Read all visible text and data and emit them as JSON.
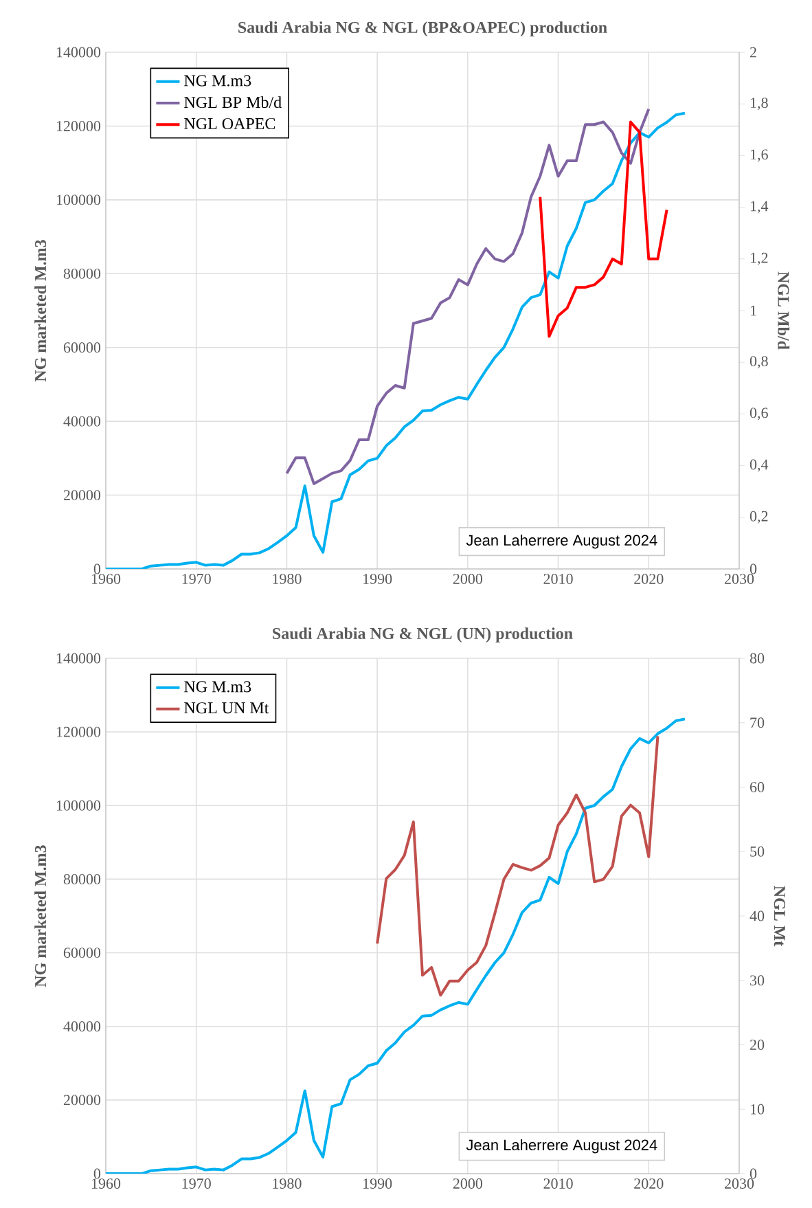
{
  "chart_data": [
    {
      "type": "line",
      "title": "Saudi Arabia NG & NGL (BP&OAPEC)  production",
      "ylabel": "NG marketed  M.m3",
      "y2label": "NGL Mb/d",
      "grid": true,
      "legend": "top left",
      "xlim": [
        1960,
        2030
      ],
      "xticks": [
        1960,
        1970,
        1980,
        1990,
        2000,
        2010,
        2020,
        2030
      ],
      "ylim": [
        0,
        140000
      ],
      "yticks": [
        0,
        20000,
        40000,
        60000,
        80000,
        100000,
        120000,
        140000
      ],
      "y2lim": [
        0,
        2
      ],
      "y2ticks": [
        0,
        {
          "value": 0.2,
          "label": "0,2"
        },
        {
          "value": 0.4,
          "label": "0,4"
        },
        {
          "value": 0.6,
          "label": "0,6"
        },
        {
          "value": 0.8,
          "label": "0,8"
        },
        1,
        {
          "value": 1.2,
          "label": "1,2"
        },
        {
          "value": 1.4,
          "label": "1,4"
        },
        {
          "value": 1.6,
          "label": "1,6"
        },
        {
          "value": 1.8,
          "label": "1,8"
        },
        2
      ],
      "annotations": [
        "Jean Laherrere August 2024"
      ],
      "series": [
        {
          "name": "NG M.m3",
          "color": "#00b0f0",
          "axis": "y",
          "x": [
            1960,
            1961,
            1962,
            1963,
            1964,
            1965,
            1966,
            1967,
            1968,
            1969,
            1970,
            1971,
            1972,
            1973,
            1974,
            1975,
            1976,
            1977,
            1978,
            1979,
            1980,
            1981,
            1982,
            1983,
            1984,
            1985,
            1986,
            1987,
            1988,
            1989,
            1990,
            1991,
            1992,
            1993,
            1994,
            1995,
            1996,
            1997,
            1998,
            1999,
            2000,
            2001,
            2002,
            2003,
            2004,
            2005,
            2006,
            2007,
            2008,
            2009,
            2010,
            2011,
            2012,
            2013,
            2014,
            2015,
            2016,
            2017,
            2018,
            2019,
            2020,
            2021,
            2022,
            2023,
            2024
          ],
          "values": [
            0,
            0,
            0,
            0,
            0,
            800,
            1000,
            1200,
            1200,
            1600,
            1800,
            1000,
            1200,
            1000,
            2300,
            4000,
            4000,
            4400,
            5500,
            7200,
            9000,
            11200,
            22500,
            9000,
            4500,
            18200,
            19000,
            25500,
            27000,
            29300,
            30000,
            33400,
            35500,
            38500,
            40300,
            42800,
            43000,
            44500,
            45600,
            46500,
            46000,
            50000,
            53800,
            57300,
            60000,
            65000,
            70900,
            73500,
            74300,
            80500,
            78800,
            87500,
            92300,
            99300,
            100000,
            102400,
            104400,
            110600,
            115400,
            118200,
            117000,
            119500,
            121000,
            123000,
            123500
          ]
        },
        {
          "name": "NGL BP Mb/d",
          "color": "#8064a2",
          "axis": "y2",
          "x": [
            1980,
            1981,
            1982,
            1983,
            1984,
            1985,
            1986,
            1987,
            1988,
            1989,
            1990,
            1991,
            1992,
            1993,
            1994,
            1995,
            1996,
            1997,
            1998,
            1999,
            2000,
            2001,
            2002,
            2003,
            2004,
            2005,
            2006,
            2007,
            2008,
            2009,
            2010,
            2011,
            2012,
            2013,
            2014,
            2015,
            2016,
            2017,
            2018,
            2019,
            2020
          ],
          "values": [
            0.37,
            0.43,
            0.43,
            0.33,
            0.35,
            0.37,
            0.38,
            0.42,
            0.5,
            0.5,
            0.63,
            0.68,
            0.71,
            0.7,
            0.95,
            0.96,
            0.97,
            1.03,
            1.05,
            1.12,
            1.1,
            1.18,
            1.24,
            1.2,
            1.19,
            1.22,
            1.3,
            1.44,
            1.52,
            1.64,
            1.52,
            1.58,
            1.58,
            1.72,
            1.72,
            1.73,
            1.69,
            1.61,
            1.57,
            1.69,
            1.78
          ]
        },
        {
          "name": "NGL OAPEC",
          "color": "#ff0000",
          "axis": "y2",
          "x": [
            2008,
            2009,
            2010,
            2011,
            2012,
            2013,
            2014,
            2015,
            2016,
            2017,
            2018,
            2019,
            2020,
            2021,
            2022
          ],
          "values": [
            1.44,
            0.9,
            0.98,
            1.01,
            1.09,
            1.09,
            1.1,
            1.13,
            1.2,
            1.18,
            1.73,
            1.69,
            1.2,
            1.2,
            1.39
          ]
        }
      ]
    },
    {
      "type": "line",
      "title": "Saudi Arabia NG & NGL (UN)  production",
      "ylabel": "NG marketed  M.m3",
      "y2label": "NGL Mt",
      "grid": true,
      "legend": "top left",
      "xlim": [
        1960,
        2030
      ],
      "xticks": [
        1960,
        1970,
        1980,
        1990,
        2000,
        2010,
        2020,
        2030
      ],
      "ylim": [
        0,
        140000
      ],
      "yticks": [
        0,
        20000,
        40000,
        60000,
        80000,
        100000,
        120000,
        140000
      ],
      "y2lim": [
        0,
        80
      ],
      "y2ticks": [
        0,
        10,
        20,
        30,
        40,
        50,
        60,
        70,
        80
      ],
      "annotations": [
        "Jean Laherrere August 2024"
      ],
      "series": [
        {
          "name": "NG M.m3",
          "color": "#00b0f0",
          "axis": "y",
          "x": [
            1960,
            1961,
            1962,
            1963,
            1964,
            1965,
            1966,
            1967,
            1968,
            1969,
            1970,
            1971,
            1972,
            1973,
            1974,
            1975,
            1976,
            1977,
            1978,
            1979,
            1980,
            1981,
            1982,
            1983,
            1984,
            1985,
            1986,
            1987,
            1988,
            1989,
            1990,
            1991,
            1992,
            1993,
            1994,
            1995,
            1996,
            1997,
            1998,
            1999,
            2000,
            2001,
            2002,
            2003,
            2004,
            2005,
            2006,
            2007,
            2008,
            2009,
            2010,
            2011,
            2012,
            2013,
            2014,
            2015,
            2016,
            2017,
            2018,
            2019,
            2020,
            2021,
            2022,
            2023,
            2024
          ],
          "values": [
            0,
            0,
            0,
            0,
            0,
            800,
            1000,
            1200,
            1200,
            1600,
            1800,
            1000,
            1200,
            1000,
            2300,
            4000,
            4000,
            4400,
            5500,
            7200,
            9000,
            11200,
            22500,
            9000,
            4500,
            18200,
            19000,
            25500,
            27000,
            29300,
            30000,
            33400,
            35500,
            38500,
            40300,
            42800,
            43000,
            44500,
            45600,
            46500,
            46000,
            50000,
            53800,
            57300,
            60000,
            65000,
            70900,
            73500,
            74300,
            80500,
            78800,
            87500,
            92300,
            99300,
            100000,
            102400,
            104400,
            110600,
            115400,
            118200,
            117000,
            119500,
            121000,
            123000,
            123500
          ]
        },
        {
          "name": "NGL UN Mt",
          "color": "#c0504d",
          "axis": "y2",
          "x": [
            1990,
            1991,
            1992,
            1993,
            1994,
            1995,
            1996,
            1997,
            1998,
            1999,
            2000,
            2001,
            2002,
            2003,
            2004,
            2005,
            2006,
            2007,
            2008,
            2009,
            2010,
            2011,
            2012,
            2013,
            2014,
            2015,
            2016,
            2017,
            2018,
            2019,
            2020,
            2021
          ],
          "values": [
            35.7,
            45.8,
            47.2,
            49.4,
            54.6,
            30.8,
            32,
            27.7,
            29.9,
            29.9,
            31.6,
            32.8,
            35.4,
            40.4,
            45.7,
            48,
            47.5,
            47.1,
            47.8,
            49,
            54.1,
            56,
            58.8,
            56,
            45.3,
            45.7,
            47.7,
            55.5,
            57.2,
            56,
            49.2,
            67.9
          ]
        }
      ]
    }
  ]
}
